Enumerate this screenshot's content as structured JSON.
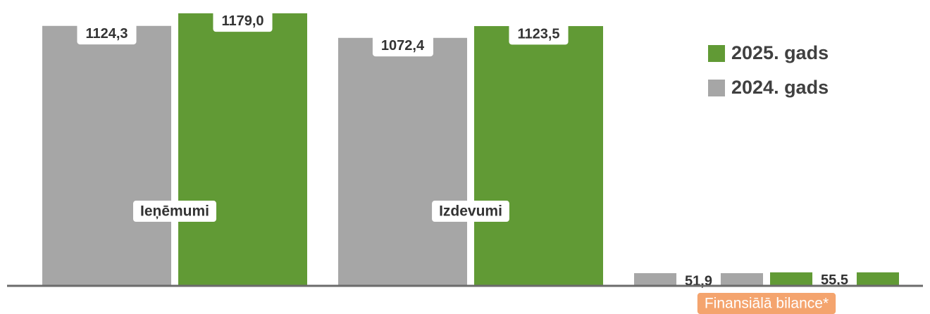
{
  "chart_data": {
    "type": "bar",
    "categories": [
      "Ieņēmumi",
      "Izdevumi",
      "Finansiālā bilance*"
    ],
    "category_label_backgrounds": [
      "#ffffff",
      "#ffffff",
      "#f4a46e"
    ],
    "category_label_colors": [
      "#333333",
      "#333333",
      "#ffffff"
    ],
    "series": [
      {
        "name": "2024. gads",
        "color": "#a6a6a6",
        "values": [
          1124.3,
          1072.4,
          51.9
        ],
        "value_labels": [
          "1124,3",
          "1072,4",
          "51,9"
        ]
      },
      {
        "name": "2025. gads",
        "color": "#619a35",
        "values": [
          1179.0,
          1123.5,
          55.5
        ],
        "value_labels": [
          "1179,0",
          "1123,5",
          "55,5"
        ]
      }
    ],
    "ylim": [
      0,
      1200
    ],
    "legend": "upper right"
  }
}
